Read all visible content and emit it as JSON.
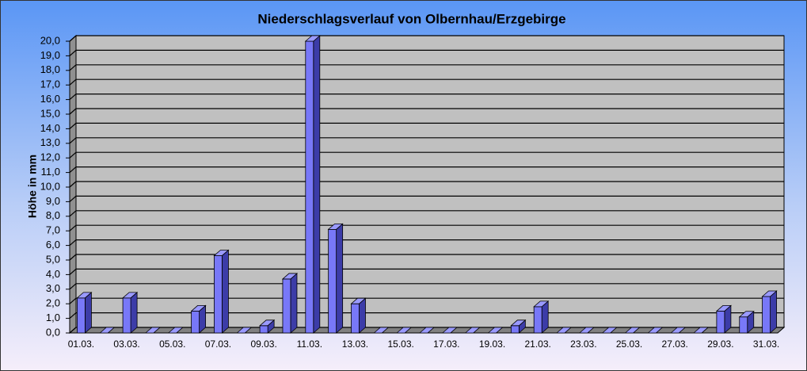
{
  "chart_data": {
    "type": "bar3d",
    "title": "Niederschlagsverlauf von Olbernhau/Erzgebirge",
    "y_label": "Höhe in  mm",
    "categories": [
      "01.03.",
      null,
      "03.03.",
      null,
      "05.03.",
      null,
      "07.03.",
      null,
      "09.03.",
      null,
      "11.03.",
      null,
      "13.03.",
      null,
      "15.03.",
      null,
      "17.03.",
      null,
      "19.03.",
      null,
      "21.03.",
      null,
      "23.03.",
      null,
      "25.03.",
      null,
      "27.03.",
      null,
      "29.03.",
      null,
      "31.03."
    ],
    "values": [
      2.4,
      0,
      2.4,
      0,
      0,
      1.5,
      5.3,
      0,
      0.5,
      3.7,
      20.0,
      7.1,
      2.0,
      0,
      0,
      0,
      0,
      0,
      0,
      0.5,
      1.8,
      0,
      0,
      0,
      0,
      0,
      0,
      0,
      1.5,
      1.1,
      2.5
    ],
    "color": "#7878f8",
    "ylim": [
      0,
      20
    ],
    "yticks": [
      {
        "value": 0,
        "label": "0,0"
      },
      {
        "value": 1,
        "label": "1,0"
      },
      {
        "value": 2,
        "label": "2,0"
      },
      {
        "value": 3,
        "label": "3,0"
      },
      {
        "value": 4,
        "label": "4,0"
      },
      {
        "value": 5,
        "label": "5,0"
      },
      {
        "value": 6,
        "label": "6,0"
      },
      {
        "value": 7,
        "label": "7,0"
      },
      {
        "value": 8,
        "label": "8,0"
      },
      {
        "value": 9,
        "label": "9,0"
      },
      {
        "value": 10,
        "label": "10,0"
      },
      {
        "value": 11,
        "label": "11,0"
      },
      {
        "value": 12,
        "label": "12,0"
      },
      {
        "value": 13,
        "label": "13,0"
      },
      {
        "value": 14,
        "label": "14,0"
      },
      {
        "value": 15,
        "label": "15,0"
      },
      {
        "value": 16,
        "label": "16,0"
      },
      {
        "value": 17,
        "label": "17,0"
      },
      {
        "value": 18,
        "label": "18,0"
      },
      {
        "value": 19,
        "label": "19,0"
      },
      {
        "value": 20,
        "label": "20,0"
      }
    ],
    "grid": true
  }
}
